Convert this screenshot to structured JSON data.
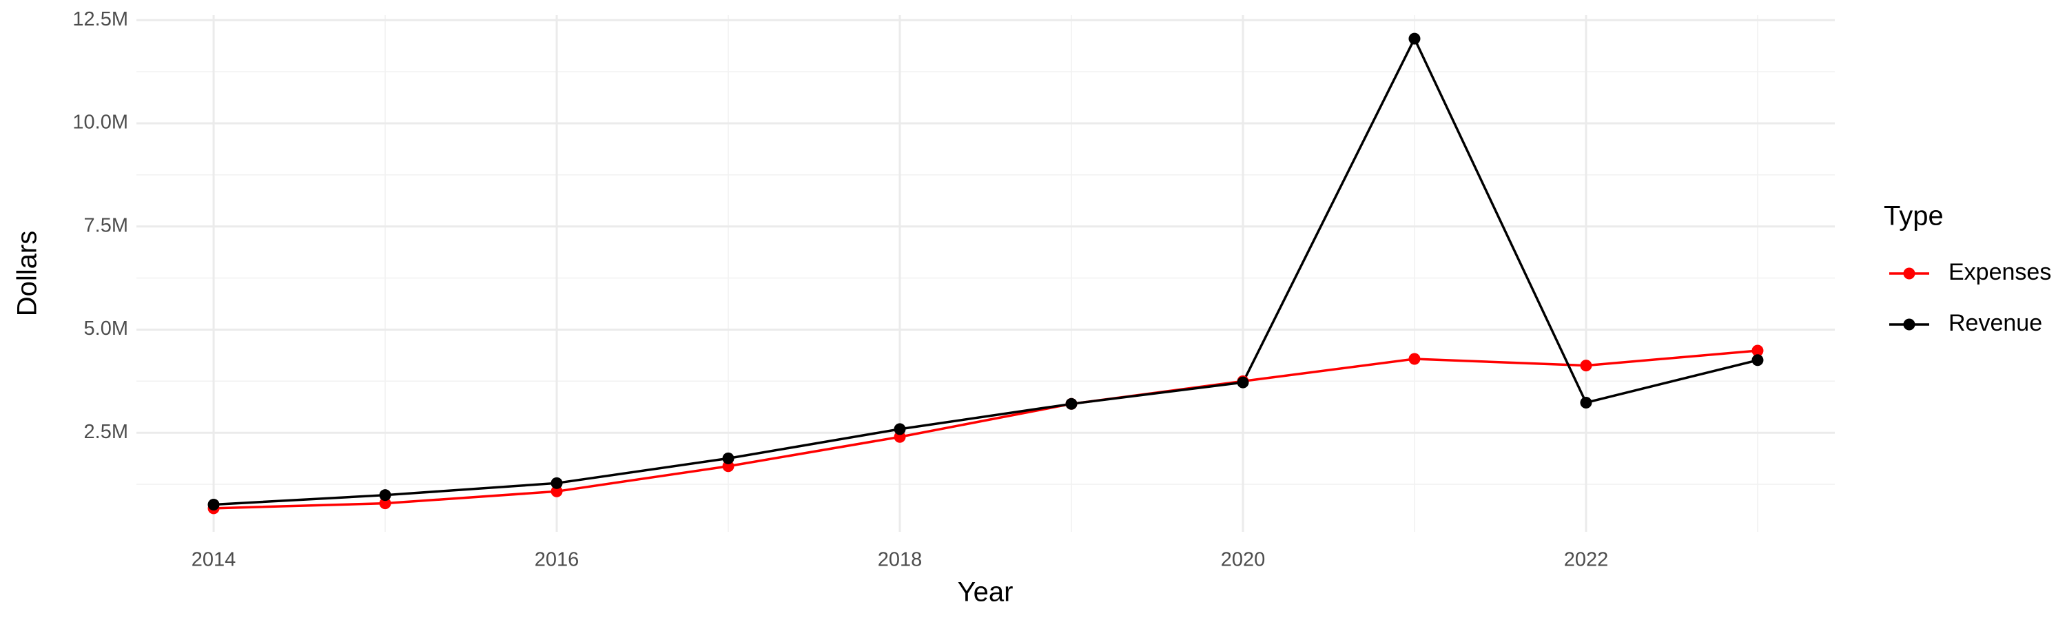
{
  "chart_data": {
    "type": "line",
    "x_label": "Year",
    "y_label": "Dollars",
    "legend_title": "Type",
    "x": [
      2014,
      2015,
      2016,
      2017,
      2018,
      2019,
      2020,
      2021,
      2022,
      2023
    ],
    "series": [
      {
        "name": "Expenses",
        "color": "#ff0000",
        "values": [
          670000,
          790000,
          1080000,
          1690000,
          2400000,
          3200000,
          3750000,
          4290000,
          4130000,
          4490000
        ]
      },
      {
        "name": "Revenue",
        "color": "#000000",
        "values": [
          760000,
          990000,
          1280000,
          1880000,
          2590000,
          3200000,
          3720000,
          12050000,
          3230000,
          4260000
        ]
      }
    ],
    "xlim": [
      2013.55,
      2023.45
    ],
    "xticks": [
      2014,
      2016,
      2018,
      2020,
      2022
    ],
    "ylim": [
      100000,
      12620000
    ],
    "yticks": [
      {
        "value": 2500000,
        "label": "2.5M"
      },
      {
        "value": 5000000,
        "label": "5.0M"
      },
      {
        "value": 7500000,
        "label": "7.5M"
      },
      {
        "value": 10000000,
        "label": "10.0M"
      },
      {
        "value": 12500000,
        "label": "12.5M"
      }
    ],
    "grid": true,
    "legend": "right"
  }
}
